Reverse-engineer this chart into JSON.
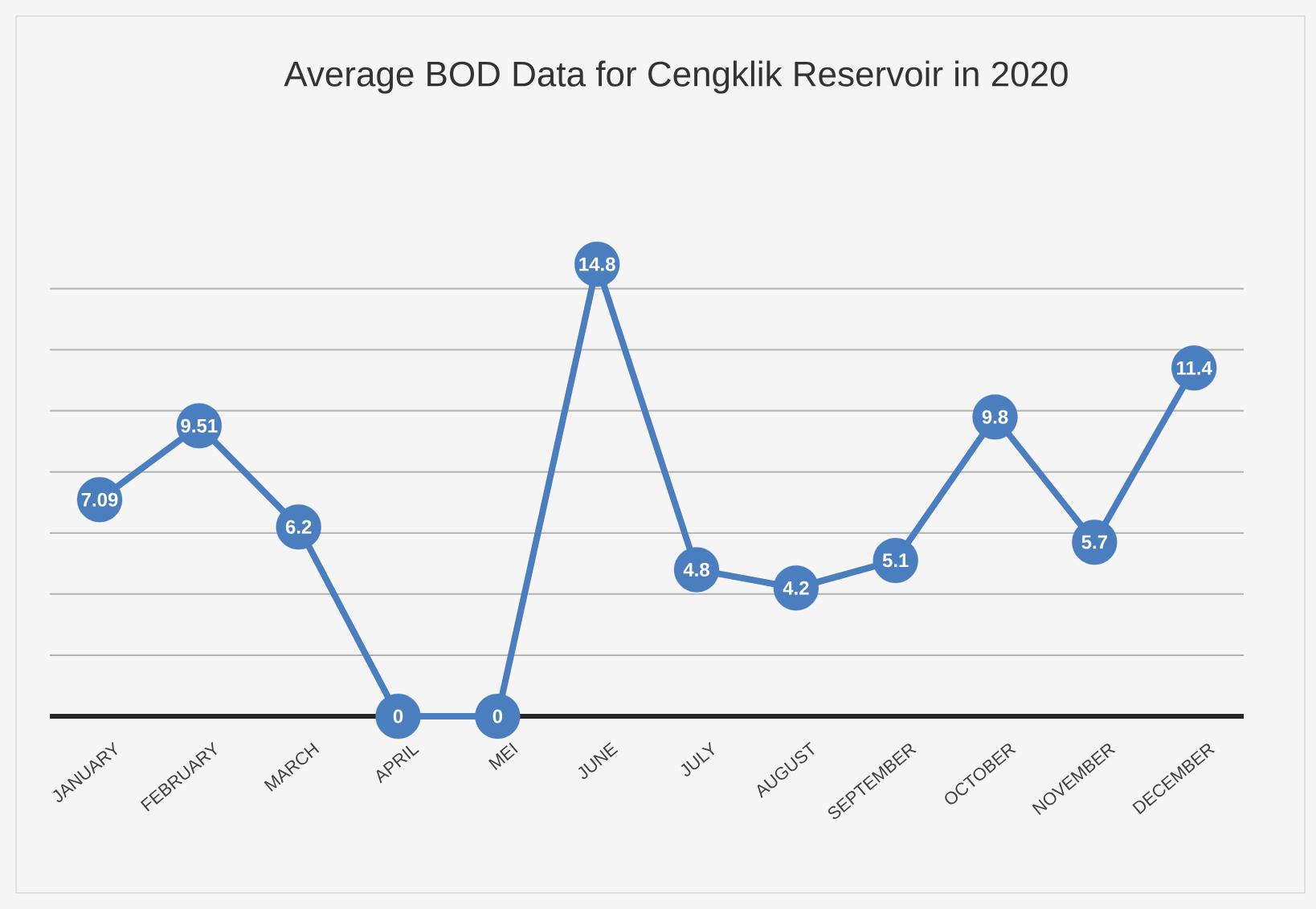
{
  "chart_data": {
    "type": "line",
    "title": "Average BOD Data for Cengklik Reservoir in 2020",
    "categories": [
      "JANUARY",
      "FEBRUARY",
      "MARCH",
      "APRIL",
      "MEI",
      "JUNE",
      "JULY",
      "AUGUST",
      "SEPTEMBER",
      "OCTOBER",
      "NOVEMBER",
      "DECEMBER"
    ],
    "values": [
      7.09,
      9.51,
      6.2,
      0,
      0,
      14.8,
      4.8,
      4.2,
      5.1,
      9.8,
      5.7,
      11.4
    ],
    "color": "#4a7ebf",
    "marker": "circle",
    "line_style": "solid",
    "data_labels": true,
    "grid": "y",
    "tick_labels": "x"
  }
}
